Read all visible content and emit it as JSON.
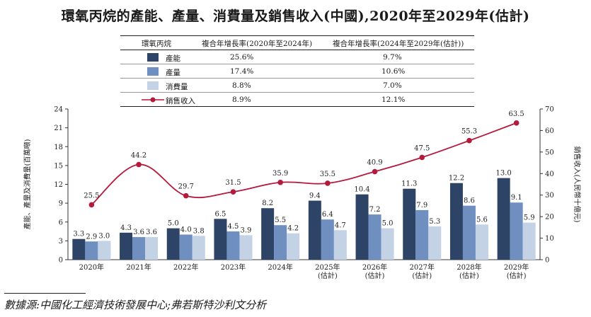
{
  "title": "環氧丙烷的產能、產量、消費量及銷售收入(中國),2020年至2029年(估計)",
  "legend_table": {
    "headers": [
      "環氧丙烷",
      "複合年增長率(2020年至2024年)",
      "複合年增長率(2024年至2029年(估計))"
    ],
    "rows": [
      {
        "label": "產能",
        "cagr1": "25.6%",
        "cagr2": "9.7%",
        "color": "#2e4466"
      },
      {
        "label": "產量",
        "cagr1": "17.4%",
        "cagr2": "10.6%",
        "color": "#6f8fc0"
      },
      {
        "label": "消費量",
        "cagr1": "8.8%",
        "cagr2": "7.0%",
        "color": "#c3d2e5"
      },
      {
        "label": "銷售收入",
        "cagr1": "8.9%",
        "cagr2": "12.1%",
        "color": "#b5193b"
      }
    ]
  },
  "chart_data": {
    "type": "bar",
    "categories": [
      "2020年",
      "2021年",
      "2022年",
      "2023年",
      "2024年",
      "2025年\n(估計)",
      "2026年\n(估計)",
      "2027年\n(估計)",
      "2028年\n(估計)",
      "2029年\n(估計)"
    ],
    "series": [
      {
        "name": "產能",
        "type": "bar",
        "axis": "left",
        "color": "#2e4466",
        "values": [
          3.3,
          4.3,
          5.0,
          6.5,
          8.2,
          9.4,
          10.4,
          11.3,
          12.2,
          13.0
        ],
        "labels": [
          "3.3",
          "4.3",
          "5.0",
          "6.5",
          "8.2",
          "9.4",
          "10.4",
          "11.3",
          "12.2",
          "13.0"
        ]
      },
      {
        "name": "產量",
        "type": "bar",
        "axis": "left",
        "color": "#6f8fc0",
        "values": [
          2.9,
          3.6,
          4.0,
          4.5,
          5.5,
          6.4,
          7.2,
          7.9,
          8.6,
          9.1
        ],
        "labels": [
          "2.9",
          "3.6",
          "4.0",
          "4.5",
          "5.5",
          "6.4",
          "7.2",
          "7.9",
          "8.6",
          "9.1"
        ]
      },
      {
        "name": "消費量",
        "type": "bar",
        "axis": "left",
        "color": "#c3d2e5",
        "values": [
          3.0,
          3.6,
          3.8,
          3.9,
          4.2,
          4.7,
          5.0,
          5.3,
          5.6,
          5.9
        ],
        "labels": [
          "3.0",
          "3.6",
          "3.8",
          "3.9",
          "4.2",
          "4.7",
          "5.0",
          "5.3",
          "5.6",
          "5.9"
        ]
      },
      {
        "name": "銷售收入",
        "type": "line",
        "axis": "right",
        "color": "#b5193b",
        "values": [
          25.5,
          44.2,
          29.7,
          31.5,
          35.9,
          35.5,
          40.9,
          47.5,
          55.3,
          63.5
        ],
        "labels": [
          "25.5",
          "44.2",
          "29.7",
          "31.5",
          "35.9",
          "35.5",
          "40.9",
          "47.5",
          "55.3",
          "63.5"
        ]
      }
    ],
    "ylabel_left": "產能、產量及消費量(百萬噸)",
    "ylabel_right": "銷售收入(人民幣十億元)",
    "ylim_left": [
      0,
      24
    ],
    "yticks_left": [
      "0",
      "3",
      "6",
      "9",
      "12",
      "15",
      "18",
      "21",
      "24"
    ],
    "ylim_right": [
      0,
      70
    ],
    "yticks_right": [
      "0",
      "10",
      "20",
      "30",
      "40",
      "50",
      "60",
      "70"
    ],
    "grid": false
  },
  "source": "數據源:中國化工經濟技術發展中心;弗若斯特沙利文分析"
}
